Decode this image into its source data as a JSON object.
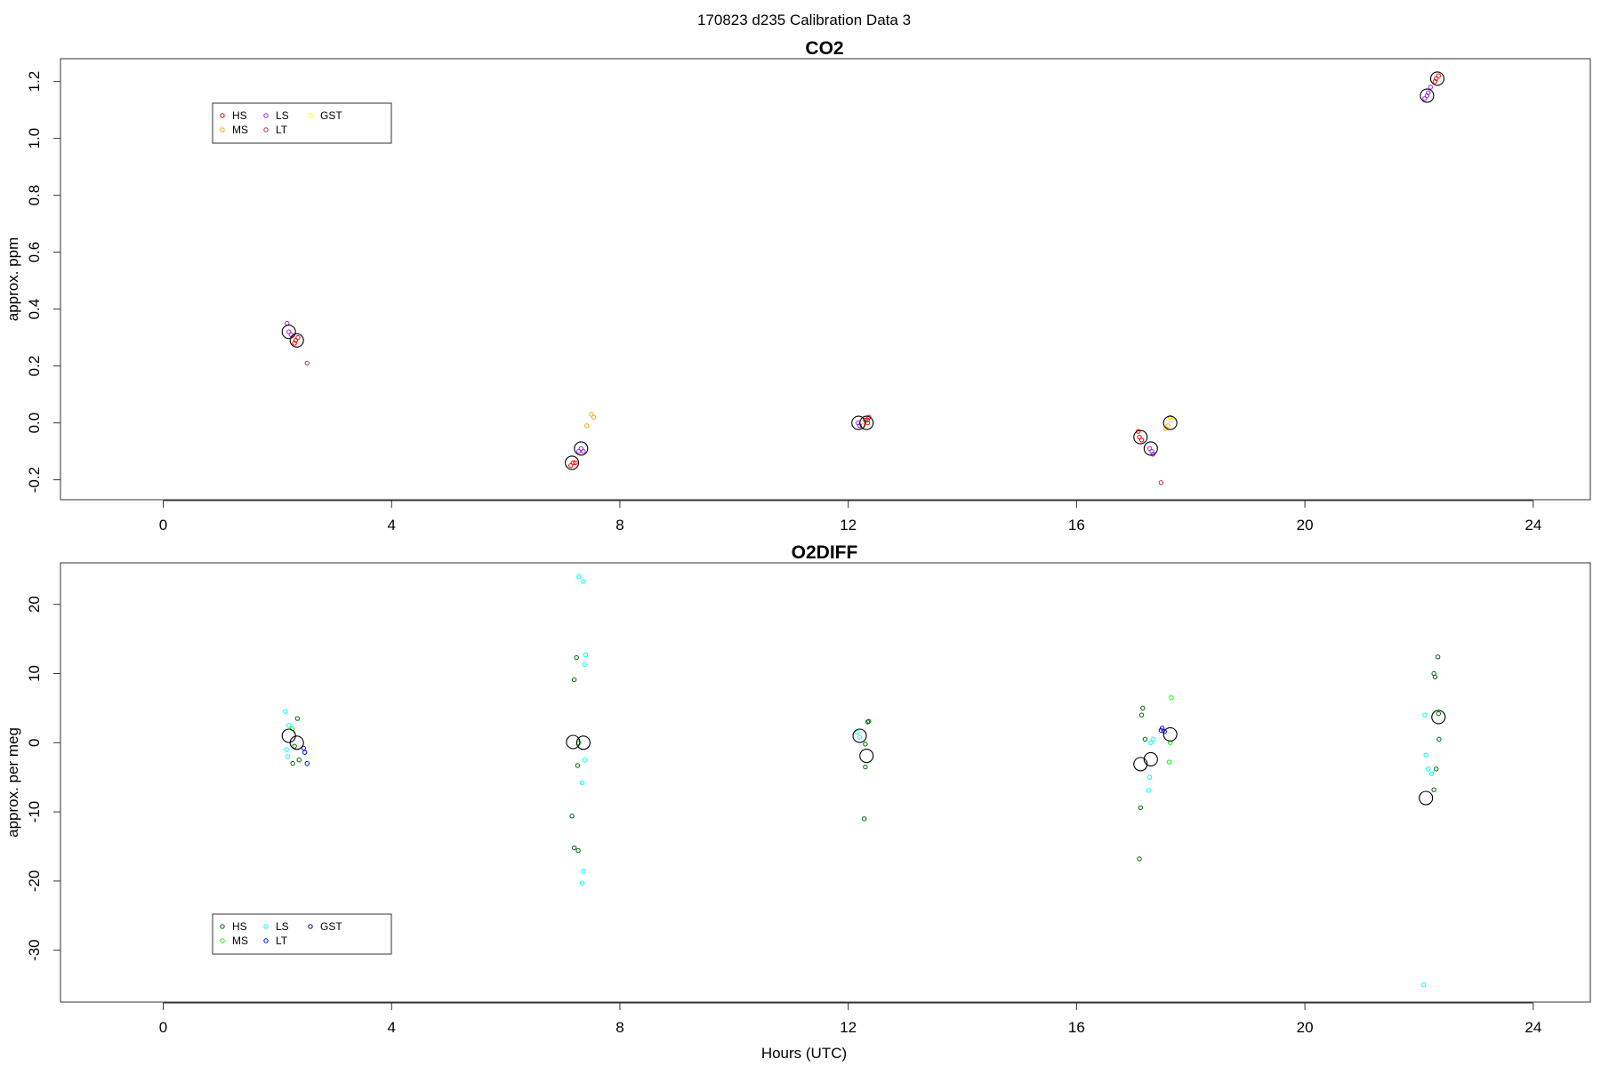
{
  "figure": {
    "title": "170823   d235   Calibration Data 3",
    "xlabel": "Hours (UTC)"
  },
  "chart_data": [
    {
      "type": "scatter",
      "title": "CO2",
      "xlabel": "",
      "ylabel": "approx. ppm",
      "xlim": [
        -1.8,
        25.0
      ],
      "ylim": [
        -0.27,
        1.28
      ],
      "xticks": [
        0,
        4,
        8,
        12,
        16,
        20,
        24
      ],
      "yticks": [
        -0.2,
        0.0,
        0.2,
        0.4,
        0.6,
        0.8,
        1.0,
        1.2
      ],
      "ytick_labels": [
        "-0.2",
        "0.0",
        "0.2",
        "0.4",
        "0.6",
        "0.8",
        "1.0",
        "1.2"
      ],
      "legend": {
        "placement": "top-left",
        "entries": [
          {
            "label": "HS",
            "color": "#ff0000"
          },
          {
            "label": "MS",
            "color": "#ffa500"
          },
          {
            "label": "LS",
            "color": "#a020f0"
          },
          {
            "label": "LT",
            "color": "#b03060"
          },
          {
            "label": "GST",
            "color": "#ffff00"
          }
        ]
      },
      "series": [
        {
          "name": "HS",
          "color": "#ff0000",
          "points": [
            [
              2.32,
              0.29
            ],
            [
              2.36,
              0.3
            ],
            [
              2.3,
              0.28
            ],
            [
              7.18,
              -0.14
            ],
            [
              7.22,
              -0.14
            ],
            [
              7.14,
              -0.15
            ],
            [
              12.3,
              0.01
            ],
            [
              12.34,
              0.0
            ],
            [
              12.36,
              0.02
            ],
            [
              17.1,
              -0.05
            ],
            [
              17.14,
              -0.06
            ],
            [
              17.08,
              -0.03
            ],
            [
              22.3,
              1.21
            ],
            [
              22.34,
              1.22
            ],
            [
              22.28,
              1.2
            ]
          ]
        },
        {
          "name": "MS",
          "color": "#ffa500",
          "points": [
            [
              7.5,
              0.03
            ],
            [
              7.54,
              0.02
            ],
            [
              7.42,
              -0.01
            ],
            [
              17.6,
              -0.01
            ],
            [
              17.64,
              0.02
            ],
            [
              17.56,
              -0.02
            ],
            [
              12.26,
              -0.01
            ]
          ]
        },
        {
          "name": "LS",
          "color": "#a020f0",
          "points": [
            [
              2.2,
              0.32
            ],
            [
              2.17,
              0.35
            ],
            [
              2.24,
              0.31
            ],
            [
              7.32,
              -0.09
            ],
            [
              7.36,
              -0.1
            ],
            [
              7.28,
              -0.1
            ],
            [
              12.17,
              0.0
            ],
            [
              12.2,
              -0.01
            ],
            [
              17.28,
              -0.09
            ],
            [
              17.32,
              -0.1
            ],
            [
              17.34,
              -0.11
            ],
            [
              22.14,
              1.15
            ],
            [
              22.1,
              1.14
            ],
            [
              22.2,
              1.18
            ],
            [
              22.16,
              1.16
            ]
          ]
        },
        {
          "name": "LT",
          "color": "#b03060",
          "points": [
            [
              2.52,
              0.21
            ],
            [
              12.34,
              0.01
            ],
            [
              17.48,
              -0.21
            ]
          ]
        },
        {
          "name": "GST",
          "color": "#e8e800",
          "points": [
            [
              17.66,
              0.01
            ]
          ]
        },
        {
          "name": "",
          "color": "#000000",
          "size": "large",
          "points": [
            [
              2.2,
              0.32
            ],
            [
              2.34,
              0.29
            ],
            [
              7.16,
              -0.14
            ],
            [
              7.32,
              -0.09
            ],
            [
              12.18,
              0.0
            ],
            [
              12.32,
              0.0
            ],
            [
              17.12,
              -0.05
            ],
            [
              17.3,
              -0.09
            ],
            [
              17.64,
              0.0
            ],
            [
              22.14,
              1.15
            ],
            [
              22.32,
              1.21
            ]
          ]
        }
      ]
    },
    {
      "type": "scatter",
      "title": "O2DIFF",
      "xlabel": "Hours (UTC)",
      "ylabel": "approx. per meg",
      "xlim": [
        -1.8,
        25.0
      ],
      "ylim": [
        -37.5,
        26.0
      ],
      "xticks": [
        0,
        4,
        8,
        12,
        16,
        20,
        24
      ],
      "yticks": [
        -30,
        -20,
        -10,
        0,
        10,
        20
      ],
      "ytick_labels": [
        "-30",
        "-20",
        "-10",
        "0",
        "10",
        "20"
      ],
      "legend": {
        "placement": "bottom-left",
        "entries": [
          {
            "label": "HS",
            "color": "#006400"
          },
          {
            "label": "MS",
            "color": "#00ff00"
          },
          {
            "label": "LS",
            "color": "#00ffff"
          },
          {
            "label": "LT",
            "color": "#0000ff"
          },
          {
            "label": "GST",
            "color": "#000080"
          }
        ]
      },
      "series": [
        {
          "name": "HS",
          "color": "#006400",
          "points": [
            [
              2.35,
              3.5
            ],
            [
              2.3,
              -0.5
            ],
            [
              2.27,
              -3.0
            ],
            [
              2.38,
              -2.5
            ],
            [
              7.24,
              12.3
            ],
            [
              7.2,
              9.1
            ],
            [
              7.26,
              -3.3
            ],
            [
              7.16,
              -10.6
            ],
            [
              7.2,
              -15.2
            ],
            [
              7.27,
              -15.6
            ],
            [
              12.36,
              3.1
            ],
            [
              12.34,
              3.0
            ],
            [
              12.3,
              -0.2
            ],
            [
              12.3,
              -3.5
            ],
            [
              12.28,
              -11.0
            ],
            [
              17.16,
              5.0
            ],
            [
              17.14,
              4.0
            ],
            [
              17.2,
              0.5
            ],
            [
              17.12,
              -9.4
            ],
            [
              17.1,
              -16.8
            ],
            [
              22.33,
              12.4
            ],
            [
              22.26,
              10.0
            ],
            [
              22.28,
              9.5
            ],
            [
              22.34,
              4.2
            ],
            [
              22.35,
              0.5
            ],
            [
              22.3,
              -3.8
            ],
            [
              22.26,
              -6.8
            ]
          ]
        },
        {
          "name": "MS",
          "color": "#00ff00",
          "points": [
            [
              2.26,
              2.0
            ],
            [
              7.28,
              0.0
            ],
            [
              17.66,
              6.5
            ],
            [
              17.62,
              -2.8
            ],
            [
              17.64,
              0.0
            ]
          ]
        },
        {
          "name": "LS",
          "color": "#00ffff",
          "points": [
            [
              2.14,
              4.5
            ],
            [
              2.2,
              2.5
            ],
            [
              2.16,
              -1.0
            ],
            [
              2.18,
              -2.0
            ],
            [
              7.28,
              24.0
            ],
            [
              7.36,
              23.3
            ],
            [
              7.4,
              12.7
            ],
            [
              7.38,
              11.3
            ],
            [
              7.38,
              -2.5
            ],
            [
              7.34,
              -5.8
            ],
            [
              7.36,
              -18.6
            ],
            [
              7.34,
              -20.3
            ],
            [
              12.16,
              1.5
            ],
            [
              12.2,
              0.8
            ],
            [
              17.3,
              0.0
            ],
            [
              17.34,
              0.5
            ],
            [
              17.28,
              -5.0
            ],
            [
              17.26,
              -6.9
            ],
            [
              22.1,
              4.0
            ],
            [
              22.12,
              -1.8
            ],
            [
              22.16,
              -3.8
            ],
            [
              22.22,
              -4.5
            ],
            [
              22.08,
              -35.0
            ]
          ]
        },
        {
          "name": "LT",
          "color": "#0000ff",
          "points": [
            [
              2.46,
              -0.8
            ],
            [
              2.48,
              -1.4
            ],
            [
              2.52,
              -3.0
            ],
            [
              17.5,
              2.1
            ],
            [
              17.54,
              1.6
            ]
          ]
        },
        {
          "name": "GST",
          "color": "#000080",
          "points": [
            [
              17.48,
              1.8
            ]
          ]
        },
        {
          "name": "",
          "color": "#000000",
          "size": "large",
          "points": [
            [
              2.2,
              1.0
            ],
            [
              2.34,
              0.0
            ],
            [
              7.18,
              0.1
            ],
            [
              7.36,
              0.0
            ],
            [
              12.2,
              1.0
            ],
            [
              12.32,
              -1.9
            ],
            [
              17.12,
              -3.1
            ],
            [
              17.3,
              -2.4
            ],
            [
              17.64,
              1.2
            ],
            [
              22.12,
              -8.0
            ],
            [
              22.34,
              3.7
            ]
          ]
        }
      ]
    }
  ]
}
